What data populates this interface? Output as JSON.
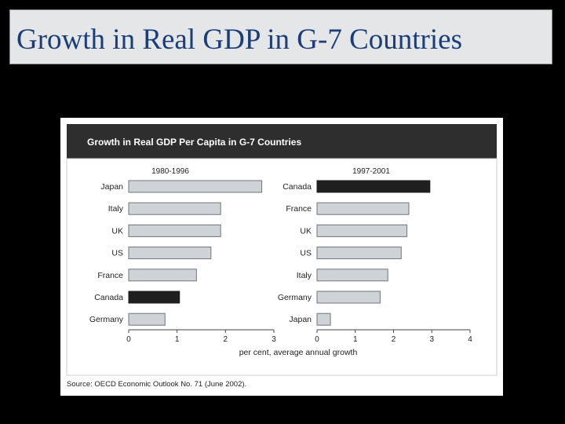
{
  "slide": {
    "title": "Growth in Real GDP in G-7 Countries"
  },
  "colors": {
    "bar_default": "#cfd3d7",
    "bar_highlight": "#1f1f1f",
    "header_bg": "#2e2e2e",
    "title_text": "#1b3d7a"
  },
  "chart_data": {
    "type": "bar",
    "orientation": "horizontal",
    "title": "Growth in Real GDP Per Capita in G-7 Countries",
    "xlabel": "per cent, average annual growth",
    "source": "Source: OECD Economic Outlook No. 71 (June 2002).",
    "panels": [
      {
        "period": "1980-1996",
        "categories": [
          "Japan",
          "Italy",
          "UK",
          "US",
          "France",
          "Canada",
          "Germany"
        ],
        "values": [
          2.75,
          1.9,
          1.9,
          1.7,
          1.4,
          1.05,
          0.75
        ],
        "highlight": "Canada",
        "xlim": [
          0,
          3
        ],
        "xticks": [
          "0",
          "1",
          "2",
          "3"
        ]
      },
      {
        "period": "1997-2001",
        "categories": [
          "Canada",
          "France",
          "UK",
          "US",
          "Italy",
          "Germany",
          "Japan"
        ],
        "values": [
          2.95,
          2.4,
          2.35,
          2.2,
          1.85,
          1.65,
          0.35
        ],
        "highlight": "Canada",
        "xlim": [
          0,
          4
        ],
        "xticks": [
          "0",
          "1",
          "2",
          "3",
          "4"
        ]
      }
    ]
  }
}
